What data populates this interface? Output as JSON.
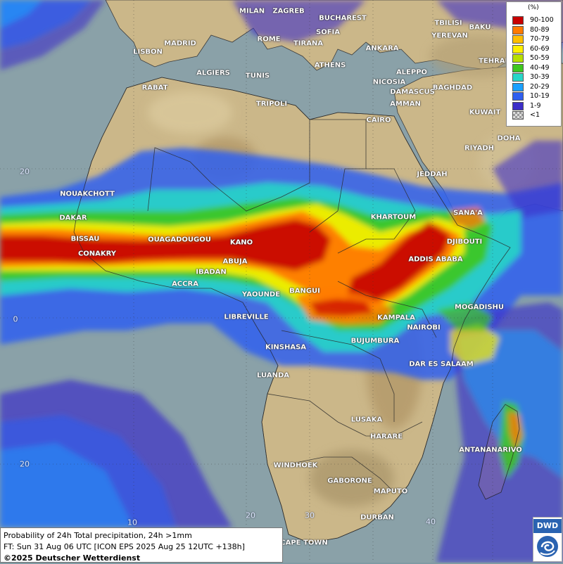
{
  "legend": {
    "unit": "(%)",
    "rows": [
      {
        "label": "90-100",
        "color": "#c80000"
      },
      {
        "label": "80-89",
        "color": "#ff7a00"
      },
      {
        "label": "70-79",
        "color": "#ffbf00"
      },
      {
        "label": "60-69",
        "color": "#fff000"
      },
      {
        "label": "50-59",
        "color": "#b8e000"
      },
      {
        "label": "40-49",
        "color": "#3ec81e"
      },
      {
        "label": "30-39",
        "color": "#28d6c8"
      },
      {
        "label": "20-29",
        "color": "#1aa0ff"
      },
      {
        "label": "10-19",
        "color": "#2f5ff0"
      },
      {
        "label": "1-9",
        "color": "#3c2ec8"
      },
      {
        "label": "<1",
        "color": "checker"
      }
    ]
  },
  "cities": [
    "MILAN",
    "ZAGREB",
    "BUCHAREST",
    "MADRID",
    "ROME",
    "SOFIA",
    "TBILISI",
    "BAKU",
    "YEREVAN",
    "LISBON",
    "TIRANA",
    "ANKARA",
    "TEHRAN",
    "ATHENS",
    "ALGIERS",
    "TUNIS",
    "ALEPPO",
    "RABAT",
    "NICOSIA",
    "BAGHDAD",
    "DAMASCUS",
    "AMMAN",
    "TRIPOLI",
    "KUWAIT",
    "CAIRO",
    "DOHA",
    "RIYADH",
    "JEDDAH",
    "NOUAKCHOTT",
    "SANA'A",
    "KHARTOUM",
    "DAKAR",
    "BISSAU",
    "OUAGADOUGOU",
    "KANO",
    "DJIBOUTI",
    "CONAKRY",
    "ABUJA",
    "ADDIS ABABA",
    "IBADAN",
    "ACCRA",
    "BANGUI",
    "YAOUNDE",
    "MOGADISHU",
    "LIBREVILLE",
    "KAMPALA",
    "NAIROBI",
    "BUJUMBURA",
    "KINSHASA",
    "DAR ES SALAAM",
    "LUANDA",
    "LUSAKA",
    "HARARE",
    "ANTANANARIVO",
    "WINDHOEK",
    "GABORONE",
    "MAPUTO",
    "DURBAN",
    "CAPE TOWN"
  ],
  "grid_labels": [
    "20",
    "0",
    "20",
    "10",
    "20",
    "30",
    "40"
  ],
  "info": {
    "line1": "Probability of 24h Total precipitation, 24h >1mm",
    "line2": "FT: Sun 31 Aug 06 UTC [ICON EPS 2025 Aug 25 12UTC +138h]",
    "copyright": "©2025 Deutscher Wetterdienst"
  },
  "logo": {
    "text": "DWD"
  }
}
